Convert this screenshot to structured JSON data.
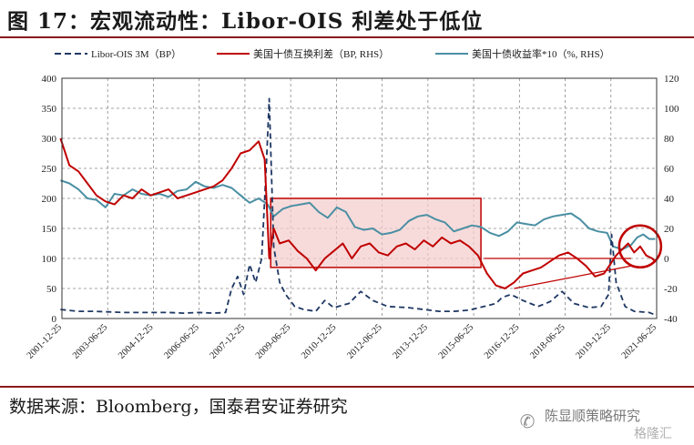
{
  "figure": {
    "title": "图 17：宏观流动性：Libor-OIS 利差处于低位",
    "source": "数据来源：Bloomberg，国泰君安证券研究"
  },
  "watermark": {
    "icon": "wechat-icon",
    "author": "陈显顺策略研究",
    "brand": "格隆汇"
  },
  "colors": {
    "libor": "#1f3864",
    "spread": "#c00000",
    "yield": "#4a8fa3",
    "highlight_fill": "#f4cccc",
    "highlight_stroke": "#c00000",
    "title_rule": "#8b1a1a"
  },
  "chart_data": {
    "type": "line",
    "legend": {
      "placement": "top",
      "entries": [
        "Libor-OIS 3M（BP）",
        "美国十债互换利差（BP, RHS）",
        "美国十债收益率*10（%, RHS）"
      ]
    },
    "grid": true,
    "y_left": {
      "ylim": [
        0,
        400
      ],
      "ticks": [
        0,
        50,
        100,
        150,
        200,
        250,
        300,
        350,
        400
      ]
    },
    "y_right": {
      "ylim": [
        -40,
        120
      ],
      "ticks": [
        -40,
        -20,
        0,
        20,
        40,
        60,
        80,
        100,
        120
      ]
    },
    "x_tick_labels": [
      "2001-12-25",
      "2003-06-25",
      "2004-12-25",
      "2006-06-25",
      "2007-12-25",
      "2009-06-25",
      "2010-12-25",
      "2012-06-25",
      "2013-12-25",
      "2015-06-25",
      "2016-12-25",
      "2018-06-25",
      "2019-12-25",
      "2021-06-25"
    ],
    "series": [
      {
        "name": "Libor-OIS 3M（BP）",
        "axis": "left",
        "style": "dashed",
        "x": [
          2001.9,
          2002.5,
          2003.0,
          2003.5,
          2004.0,
          2004.5,
          2005.0,
          2005.5,
          2006.0,
          2006.5,
          2007.0,
          2007.4,
          2007.6,
          2007.8,
          2008.0,
          2008.2,
          2008.4,
          2008.6,
          2008.75,
          2008.85,
          2009.0,
          2009.2,
          2009.4,
          2009.7,
          2010.0,
          2010.4,
          2010.7,
          2011.0,
          2011.5,
          2011.9,
          2012.3,
          2012.8,
          2013.5,
          2014.0,
          2014.5,
          2015.0,
          2015.5,
          2016.0,
          2016.4,
          2016.6,
          2016.9,
          2017.3,
          2017.8,
          2018.2,
          2018.6,
          2019.0,
          2019.5,
          2019.9,
          2020.15,
          2020.25,
          2020.4,
          2020.7,
          2021.0,
          2021.5,
          2021.7
        ],
        "y": [
          15,
          12,
          12,
          11,
          10,
          10,
          10,
          10,
          9,
          10,
          9,
          10,
          50,
          70,
          40,
          90,
          60,
          100,
          250,
          366,
          120,
          60,
          40,
          20,
          15,
          12,
          30,
          18,
          25,
          45,
          30,
          20,
          18,
          15,
          12,
          12,
          14,
          20,
          25,
          35,
          40,
          30,
          20,
          28,
          45,
          25,
          18,
          20,
          40,
          140,
          60,
          20,
          12,
          10,
          6
        ]
      },
      {
        "name": "美国十债互换利差（BP, RHS）",
        "axis": "right",
        "style": "solid",
        "x": [
          2001.9,
          2002.2,
          2002.5,
          2002.8,
          2003.1,
          2003.4,
          2003.7,
          2004.0,
          2004.3,
          2004.6,
          2004.9,
          2005.2,
          2005.5,
          2005.8,
          2006.1,
          2006.4,
          2006.7,
          2007.0,
          2007.3,
          2007.6,
          2007.9,
          2008.2,
          2008.5,
          2008.7,
          2008.85,
          2009.0,
          2009.2,
          2009.5,
          2009.8,
          2010.1,
          2010.4,
          2010.7,
          2011.0,
          2011.3,
          2011.6,
          2011.9,
          2012.2,
          2012.5,
          2012.8,
          2013.1,
          2013.4,
          2013.7,
          2014.0,
          2014.3,
          2014.6,
          2014.9,
          2015.2,
          2015.5,
          2015.8,
          2016.1,
          2016.4,
          2016.7,
          2017.0,
          2017.3,
          2017.6,
          2017.9,
          2018.2,
          2018.5,
          2018.8,
          2019.1,
          2019.4,
          2019.7,
          2020.0,
          2020.2,
          2020.4,
          2020.6,
          2020.8,
          2021.0,
          2021.2,
          2021.4,
          2021.6,
          2021.7
        ],
        "y": [
          80,
          62,
          58,
          50,
          42,
          38,
          36,
          42,
          40,
          46,
          42,
          44,
          46,
          40,
          42,
          44,
          46,
          48,
          52,
          60,
          70,
          72,
          78,
          66,
          0,
          20,
          10,
          12,
          5,
          0,
          -8,
          0,
          5,
          10,
          0,
          8,
          10,
          4,
          2,
          8,
          10,
          6,
          12,
          8,
          14,
          10,
          12,
          8,
          2,
          -10,
          -18,
          -20,
          -16,
          -10,
          -8,
          -6,
          -2,
          2,
          4,
          0,
          -5,
          -12,
          -10,
          -4,
          2,
          6,
          10,
          4,
          8,
          2,
          0,
          -2
        ]
      },
      {
        "name": "美国十债收益率*10（%, RHS）",
        "axis": "right",
        "style": "solid",
        "x": [
          2001.9,
          2002.2,
          2002.5,
          2002.8,
          2003.1,
          2003.4,
          2003.7,
          2004.0,
          2004.3,
          2004.6,
          2004.9,
          2005.2,
          2005.5,
          2005.8,
          2006.1,
          2006.4,
          2006.7,
          2007.0,
          2007.3,
          2007.6,
          2007.9,
          2008.2,
          2008.5,
          2008.8,
          2009.0,
          2009.3,
          2009.6,
          2009.9,
          2010.2,
          2010.5,
          2010.8,
          2011.1,
          2011.4,
          2011.7,
          2012.0,
          2012.3,
          2012.6,
          2012.9,
          2013.2,
          2013.5,
          2013.8,
          2014.1,
          2014.4,
          2014.7,
          2015.0,
          2015.3,
          2015.6,
          2015.9,
          2016.2,
          2016.5,
          2016.8,
          2017.1,
          2017.4,
          2017.7,
          2018.0,
          2018.3,
          2018.6,
          2018.9,
          2019.2,
          2019.5,
          2019.8,
          2020.1,
          2020.3,
          2020.6,
          2020.9,
          2021.1,
          2021.3,
          2021.5,
          2021.7
        ],
        "y": [
          52,
          50,
          46,
          40,
          39,
          34,
          43,
          42,
          46,
          43,
          42,
          43,
          41,
          45,
          46,
          51,
          48,
          47,
          49,
          47,
          42,
          37,
          40,
          36,
          28,
          33,
          35,
          36,
          37,
          31,
          27,
          34,
          31,
          21,
          19,
          20,
          16,
          17,
          19,
          25,
          28,
          29,
          26,
          24,
          18,
          20,
          22,
          21,
          17,
          15,
          18,
          24,
          23,
          22,
          26,
          28,
          29,
          30,
          26,
          20,
          18,
          17,
          8,
          6,
          9,
          14,
          16,
          13,
          13
        ]
      }
    ],
    "annotations": [
      {
        "type": "rectangle",
        "x": [
          2008.9,
          2015.9
        ],
        "y_left": [
          85,
          200
        ],
        "label": ""
      },
      {
        "type": "circle",
        "x_center": 2021.2,
        "y_right_center": 8,
        "label": ""
      },
      {
        "type": "line",
        "from": [
          2016.0,
          0
        ],
        "to": [
          2020.9,
          0
        ],
        "axis": "right"
      },
      {
        "type": "line",
        "from": [
          2017.0,
          -20
        ],
        "to": [
          2020.9,
          -5
        ],
        "axis": "right"
      }
    ]
  }
}
